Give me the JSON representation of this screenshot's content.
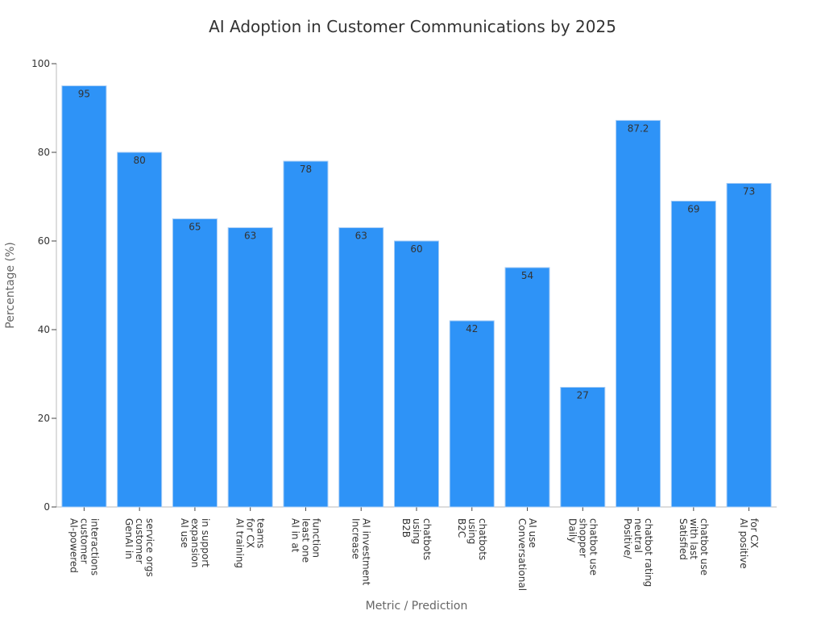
{
  "chart_data": {
    "type": "bar",
    "title": "AI Adoption in Customer Communications by 2025",
    "xlabel": "Metric / Prediction",
    "ylabel": "Percentage (%)",
    "ylim": [
      0,
      100
    ],
    "yticks": [
      0,
      20,
      40,
      60,
      80,
      100
    ],
    "grid": false,
    "bar_color": "#2e93f7",
    "categories": [
      [
        "AI-powered",
        "customer",
        "interactions"
      ],
      [
        "GenAI in",
        "customer",
        "service orgs"
      ],
      [
        "AI use",
        "expansion",
        "in support"
      ],
      [
        "AI training",
        "for CX",
        "teams"
      ],
      [
        "AI in at",
        "least one",
        "function"
      ],
      [
        "Increase",
        "AI investment"
      ],
      [
        "B2B",
        "using",
        "chatbots"
      ],
      [
        "B2C",
        "using",
        "chatbots"
      ],
      [
        "Conversational",
        "AI use"
      ],
      [
        "Daily",
        "shopper",
        "chatbot use"
      ],
      [
        "Positive/",
        "neutral",
        "chatbot rating"
      ],
      [
        "Satisfied",
        "with last",
        "chatbot use"
      ],
      [
        "AI positive",
        "for CX"
      ]
    ],
    "values": [
      95,
      80,
      65,
      63,
      78,
      63,
      60,
      42,
      54,
      27,
      87.2,
      69,
      73
    ],
    "value_labels": [
      "95",
      "80",
      "65",
      "63",
      "78",
      "63",
      "60",
      "42",
      "54",
      "27",
      "87.2",
      "69",
      "73"
    ]
  }
}
